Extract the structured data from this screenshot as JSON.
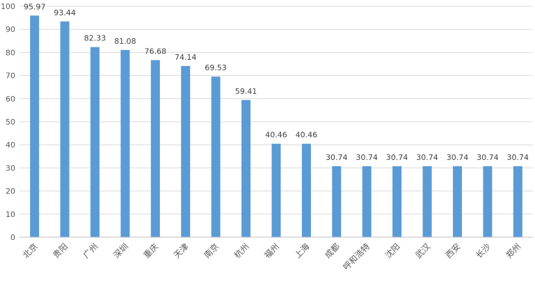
{
  "chart_data": {
    "type": "bar",
    "title": "",
    "xlabel": "",
    "ylabel": "",
    "categories": [
      "北京",
      "贵阳",
      "广州",
      "深圳",
      "重庆",
      "天津",
      "南京",
      "杭州",
      "福州",
      "上海",
      "成都",
      "呼和浩特",
      "沈阳",
      "武汉",
      "西安",
      "长沙",
      "郑州"
    ],
    "values": [
      95.97,
      93.44,
      82.33,
      81.08,
      76.68,
      74.14,
      69.53,
      59.41,
      40.46,
      40.46,
      30.74,
      30.74,
      30.74,
      30.74,
      30.74,
      30.74,
      30.74
    ],
    "ylim": [
      0,
      100
    ],
    "yticks": [
      0,
      10,
      20,
      30,
      40,
      50,
      60,
      70,
      80,
      90,
      100
    ],
    "grid": true,
    "legend": "none",
    "bar_color": "#5b9bd5",
    "data_labels": true
  }
}
